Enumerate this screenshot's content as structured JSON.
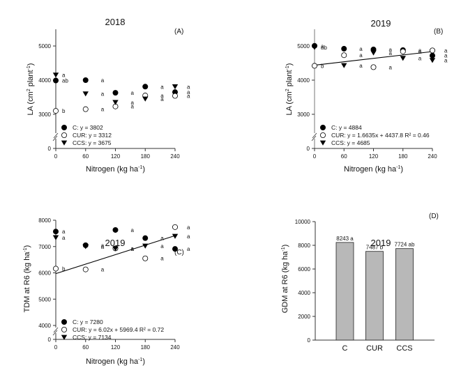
{
  "chart_data": [
    {
      "id": "A",
      "type": "scatter",
      "title": "2018",
      "panel_label": "(A)",
      "xlabel": "Nitrogen (kg ha",
      "xlabel_sup": "-1",
      "xlabel_end": ")",
      "ylabel": "LA (cm",
      "ylabel_sup1": "2",
      "ylabel_mid": " plant",
      "ylabel_sup2": "-1",
      "ylabel_end": ")",
      "x_ticks": [
        0,
        60,
        120,
        180,
        240
      ],
      "y_ticks": [
        0,
        3000,
        4000,
        5000
      ],
      "y_break": [
        0,
        2500
      ],
      "ylim": [
        2500,
        5500
      ],
      "xlim": [
        0,
        240
      ],
      "series": [
        {
          "name": "C",
          "marker": "filled-circle",
          "x": [
            0,
            60,
            120,
            180,
            240
          ],
          "y": [
            3990,
            4000,
            3630,
            3810,
            3650
          ],
          "letters": [
            "ab",
            "a",
            "a",
            "a",
            "a"
          ]
        },
        {
          "name": "CUR",
          "marker": "open-circle",
          "x": [
            0,
            60,
            120,
            180,
            240
          ],
          "y": [
            3100,
            3150,
            3230,
            3550,
            3540
          ],
          "letters": [
            "b",
            "a",
            "a",
            "a",
            "a"
          ]
        },
        {
          "name": "CCS",
          "marker": "filled-triangle-down",
          "x": [
            0,
            60,
            120,
            180,
            240
          ],
          "y": [
            4150,
            3600,
            3350,
            3450,
            3810
          ],
          "letters": [
            "a",
            "a",
            "a",
            "a",
            "a"
          ]
        }
      ],
      "legend": [
        "C: y = 3802",
        "CUR: y = 3312",
        "CCS: y = 3675"
      ],
      "fit_line": null
    },
    {
      "id": "B",
      "type": "scatter",
      "title": "2019",
      "panel_label": "(B)",
      "xlabel": "Nitrogen (kg ha",
      "xlabel_sup": "-1",
      "xlabel_end": ")",
      "ylabel": "LA (cm",
      "ylabel_sup1": "2",
      "ylabel_mid": " plant",
      "ylabel_sup2": "-1",
      "ylabel_end": ")",
      "x_ticks": [
        0,
        60,
        120,
        180,
        240
      ],
      "y_ticks": [
        0,
        3000,
        4000,
        5000
      ],
      "y_break": [
        0,
        2500
      ],
      "ylim": [
        2500,
        5500
      ],
      "xlim": [
        0,
        240
      ],
      "series": [
        {
          "name": "C",
          "marker": "filled-circle",
          "x": [
            0,
            60,
            120,
            180,
            240
          ],
          "y": [
            5005,
            4920,
            4900,
            4880,
            4720
          ],
          "letters": [
            "a",
            "a",
            "a",
            "a",
            "a"
          ]
        },
        {
          "name": "CUR",
          "marker": "open-circle",
          "x": [
            0,
            60,
            120,
            180,
            240
          ],
          "y": [
            4420,
            4730,
            4380,
            4840,
            4870
          ],
          "letters": [
            "b",
            "a",
            "a",
            "a",
            "a"
          ]
        },
        {
          "name": "CCS",
          "marker": "filled-triangle-down",
          "x": [
            0,
            60,
            120,
            180,
            240
          ],
          "y": [
            4960,
            4430,
            4800,
            4640,
            4580
          ],
          "letters": [
            "ab",
            "a",
            "a",
            "a",
            "a"
          ]
        }
      ],
      "legend": [
        "C: y = 4884",
        "CUR: y = 1.6635x + 4437.8 R² = 0.46",
        "CCS: y = 4685"
      ],
      "fit_line": {
        "slope": 1.6635,
        "intercept": 4437.8,
        "x_range": [
          0,
          240
        ]
      }
    },
    {
      "id": "C",
      "type": "scatter",
      "title": "2019",
      "panel_label": "(C)",
      "xlabel": "Nitrogen (kg ha",
      "xlabel_sup": "-1",
      "xlabel_end": ")",
      "ylabel": "TDM at R6 (kg ha",
      "ylabel_sup1": "",
      "ylabel_mid": "",
      "ylabel_sup2": "-1",
      "ylabel_end": ")",
      "x_ticks": [
        0,
        60,
        120,
        180,
        240
      ],
      "y_ticks": [
        0,
        4000,
        5000,
        6000,
        7000,
        8000
      ],
      "y_break": [
        0,
        4000
      ],
      "ylim": [
        4000,
        8000
      ],
      "xlim": [
        0,
        240
      ],
      "series": [
        {
          "name": "C",
          "marker": "filled-circle",
          "x": [
            0,
            60,
            120,
            180,
            240
          ],
          "y": [
            7570,
            7050,
            7630,
            7320,
            6910
          ],
          "letters": [
            "a",
            "a",
            "a",
            "a",
            "a"
          ]
        },
        {
          "name": "CUR",
          "marker": "open-circle",
          "x": [
            0,
            60,
            120,
            180,
            240
          ],
          "y": [
            6160,
            6130,
            6930,
            6550,
            7740
          ],
          "letters": [
            "b",
            "a",
            "a",
            "a",
            "a"
          ]
        },
        {
          "name": "CCS",
          "marker": "filled-triangle-down",
          "x": [
            0,
            60,
            120,
            180,
            240
          ],
          "y": [
            7340,
            7000,
            6920,
            7020,
            7390
          ],
          "letters": [
            "a",
            "a",
            "a",
            "a",
            "a"
          ]
        }
      ],
      "legend": [
        "C: y = 7280",
        "CUR: y = 6.02x + 5969.4 R² = 0.72",
        "CCS: y = 7134"
      ],
      "fit_line": {
        "slope": 6.02,
        "intercept": 5969.4,
        "x_range": [
          0,
          240
        ]
      }
    },
    {
      "id": "D",
      "type": "bar",
      "title": "2019",
      "panel_label": "(D)",
      "xlabel": "",
      "ylabel": "GDM at R6 (kg ha",
      "ylabel_sup2": "-1",
      "ylabel_end": ")",
      "categories": [
        "C",
        "CUR",
        "CCS"
      ],
      "values": [
        8243,
        7487,
        7724
      ],
      "labels": [
        "8243 a",
        "7487 b",
        "7724 ab"
      ],
      "y_ticks": [
        0,
        2000,
        4000,
        6000,
        8000,
        10000
      ],
      "ylim": [
        0,
        10000
      ],
      "bar_color": "#b8b8b8"
    }
  ]
}
